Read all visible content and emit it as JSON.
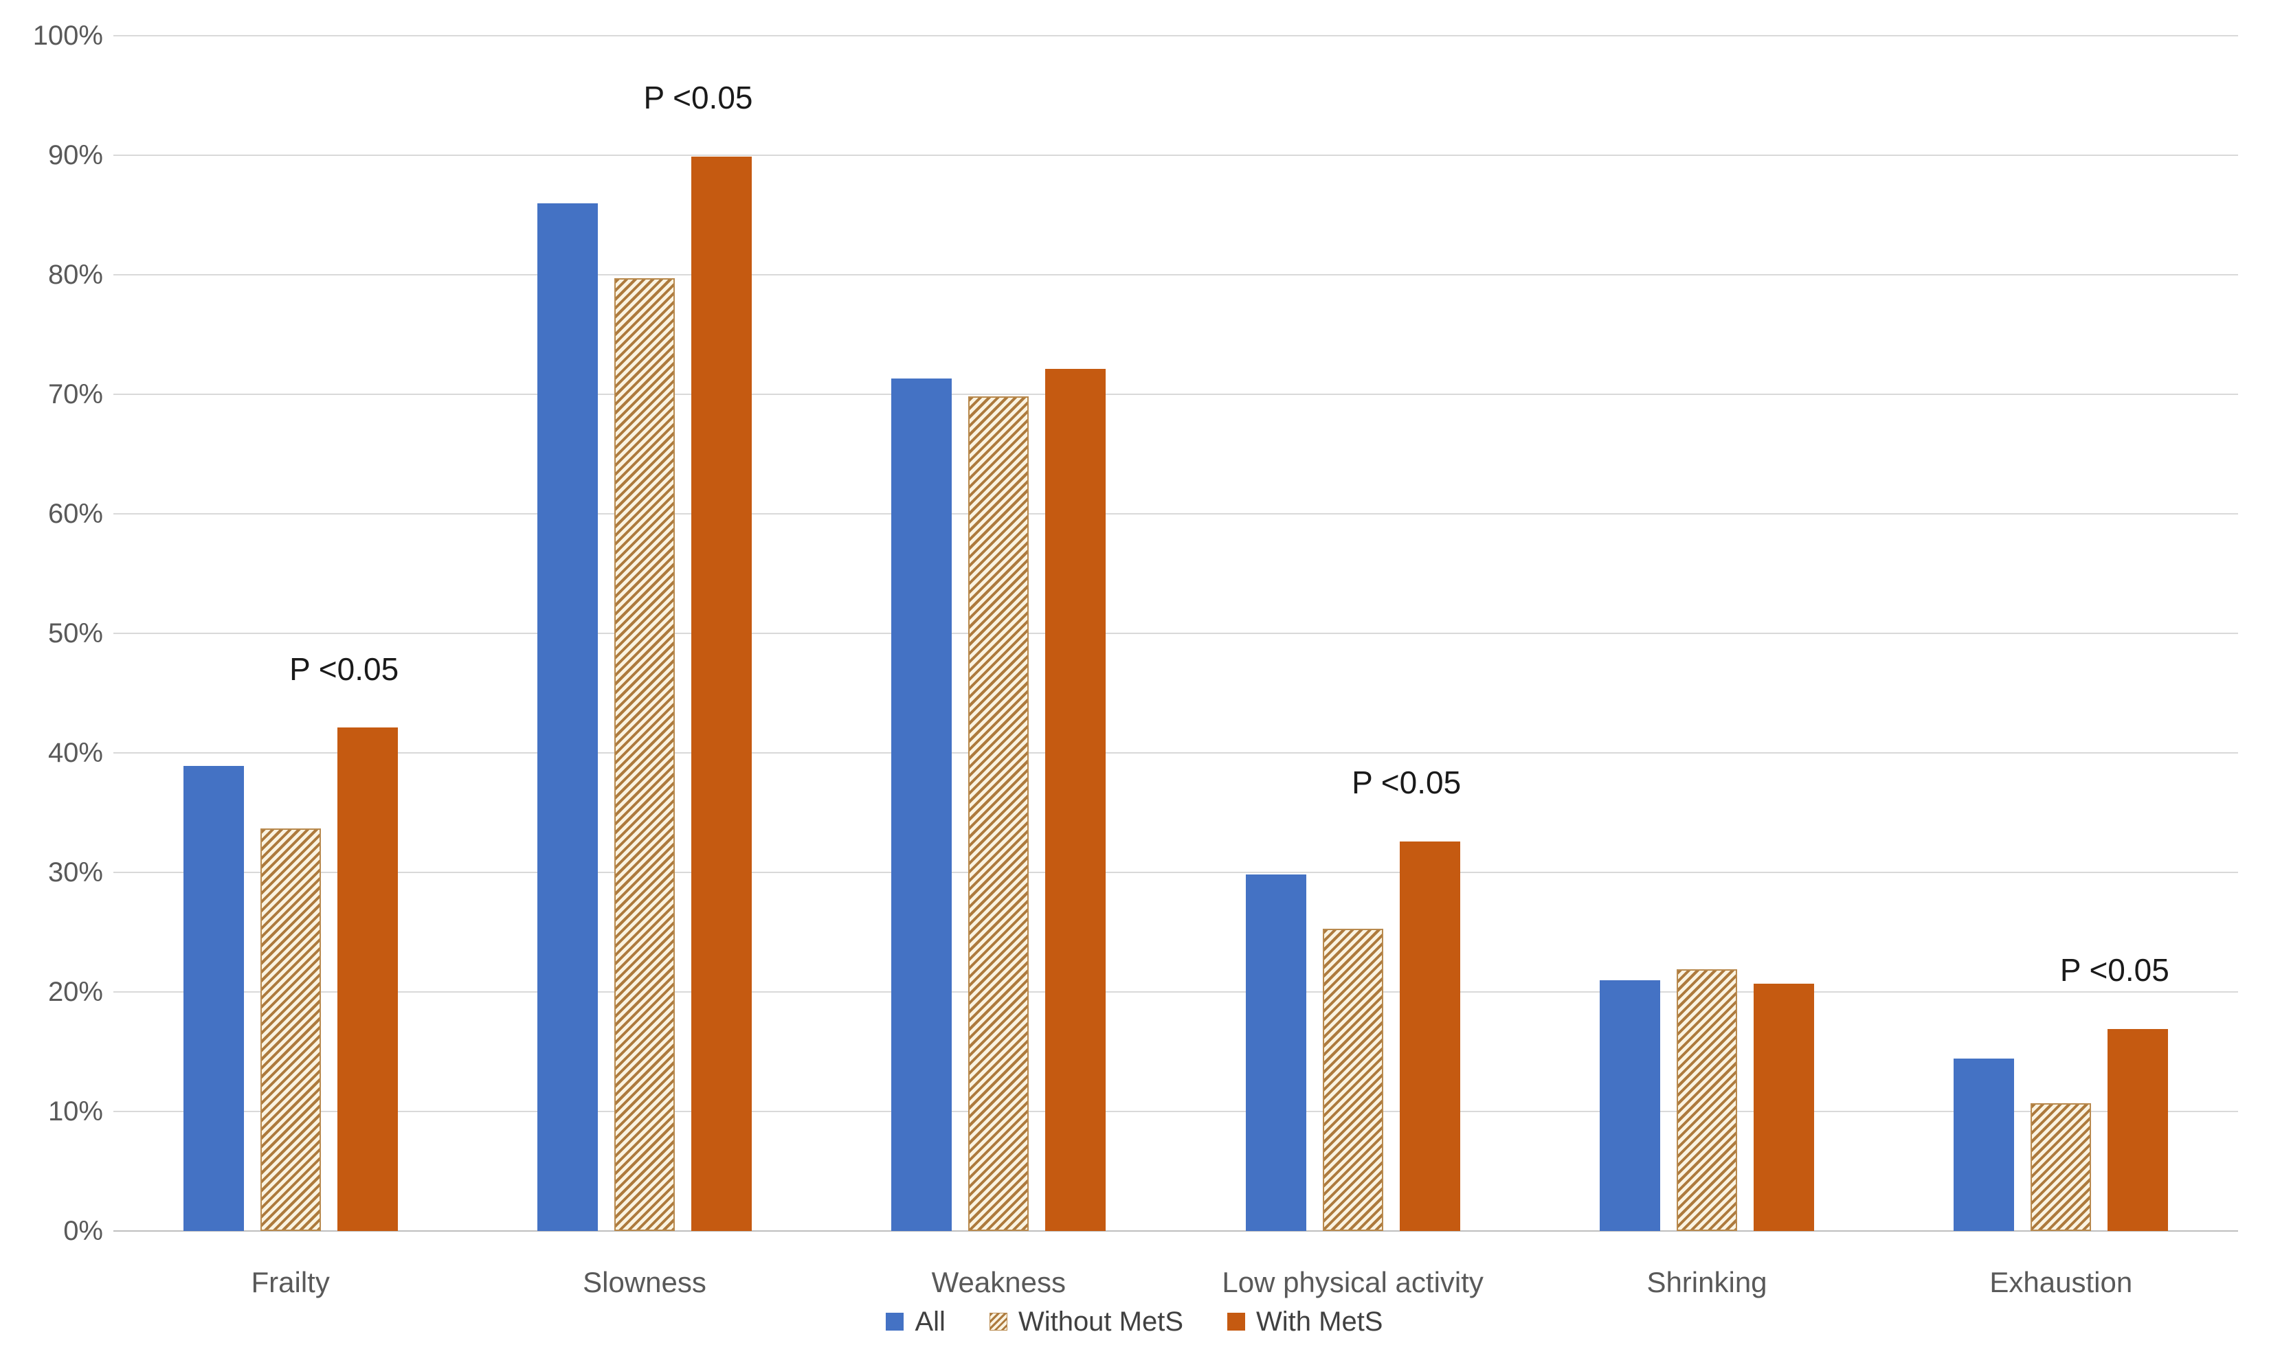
{
  "chart_data": {
    "type": "bar",
    "title": "",
    "categories": [
      "Frailty",
      "Slowness",
      "Weakness",
      "Low physical activity",
      "Shrinking",
      "Exhaustion"
    ],
    "series": [
      {
        "name": "All",
        "pattern": "solid",
        "color": "#4472c4",
        "values": [
          38.9,
          86.0,
          71.3,
          29.8,
          21.0,
          14.4
        ]
      },
      {
        "name": "Without MetS",
        "pattern": "diagonal-hatch",
        "color": "#ad7a3d",
        "values": [
          33.7,
          79.7,
          69.8,
          25.3,
          21.9,
          10.7
        ]
      },
      {
        "name": "With MetS",
        "pattern": "solid",
        "color": "#c55a11",
        "values": [
          42.1,
          89.9,
          72.1,
          32.6,
          20.7,
          16.9
        ]
      }
    ],
    "annotations": [
      {
        "category": "Frailty",
        "text": "P <0.05"
      },
      {
        "category": "Slowness",
        "text": "P <0.05"
      },
      {
        "category": "Low physical activity",
        "text": "P <0.05"
      },
      {
        "category": "Exhaustion",
        "text": "P <0.05"
      }
    ],
    "y_axis": {
      "min": 0,
      "max": 100,
      "step": 10,
      "tick_labels": [
        "0%",
        "10%",
        "20%",
        "30%",
        "40%",
        "50%",
        "60%",
        "70%",
        "80%",
        "90%",
        "100%"
      ],
      "format": "percent"
    },
    "grid": true,
    "legend_position": "bottom",
    "colors": {
      "series_blue": "#4472c4",
      "series_orange": "#c55a11",
      "hatch_stripe": "#ad7a3d",
      "hatch_background": "#faf3e1",
      "gridline": "#d9d9d9",
      "axis_baseline": "#bfbfbf",
      "axis_text": "#595959",
      "annotation_text": "#1a1a1a"
    }
  }
}
